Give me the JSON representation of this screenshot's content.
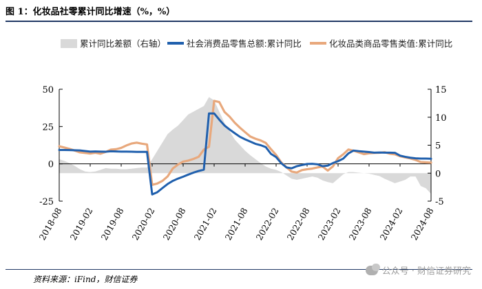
{
  "figure": {
    "title": "图 1：化妆品社零累计同比增速（%，%）",
    "source": "资料来源：iFind，财信证券",
    "watermark": "公众号 · 财信证券研究"
  },
  "chart_data": {
    "type": "line",
    "legend_position": "top",
    "grid": false,
    "left_axis": {
      "ylim": [
        -25,
        50
      ],
      "ticks": [
        -25,
        0,
        25,
        50
      ]
    },
    "right_axis": {
      "ylim": [
        -5,
        15
      ],
      "ticks": [
        -5,
        0,
        5,
        10,
        15
      ]
    },
    "x_tick_labels": [
      "2018-08",
      "2019-02",
      "2019-08",
      "2020-02",
      "2020-08",
      "2021-02",
      "2021-08",
      "2022-02",
      "2022-08",
      "2023-02",
      "2023-08",
      "2024-02",
      "2024-08"
    ],
    "x_start": "2018-08",
    "x": [
      "2018-08",
      "2018-09",
      "2018-10",
      "2018-11",
      "2018-12",
      "2019-01",
      "2019-02",
      "2019-03",
      "2019-04",
      "2019-05",
      "2019-06",
      "2019-07",
      "2019-08",
      "2019-09",
      "2019-10",
      "2019-11",
      "2019-12",
      "2020-01",
      "2020-02",
      "2020-03",
      "2020-04",
      "2020-05",
      "2020-06",
      "2020-07",
      "2020-08",
      "2020-09",
      "2020-10",
      "2020-11",
      "2020-12",
      "2021-01",
      "2021-02",
      "2021-03",
      "2021-04",
      "2021-05",
      "2021-06",
      "2021-07",
      "2021-08",
      "2021-09",
      "2021-10",
      "2021-11",
      "2021-12",
      "2022-01",
      "2022-02",
      "2022-03",
      "2022-04",
      "2022-05",
      "2022-06",
      "2022-07",
      "2022-08",
      "2022-09",
      "2022-10",
      "2022-11",
      "2022-12",
      "2023-01",
      "2023-02",
      "2023-03",
      "2023-04",
      "2023-05",
      "2023-06",
      "2023-07",
      "2023-08",
      "2023-09",
      "2023-10",
      "2023-11",
      "2023-12",
      "2024-01",
      "2024-02",
      "2024-03",
      "2024-04",
      "2024-05",
      "2024-06",
      "2024-07",
      "2024-08"
    ],
    "series": [
      {
        "name": "累计同比差额（右轴）",
        "type": "area",
        "axis": "right",
        "color": "#d9d9d9",
        "values": [
          2.5,
          2.2,
          1.8,
          1.3,
          0.7,
          0.3,
          0.2,
          0.3,
          0.6,
          0.9,
          0.8,
          0.8,
          0.7,
          0.7,
          0.8,
          0.9,
          1.0,
          1.0,
          2.5,
          4.0,
          5.5,
          7.0,
          7.8,
          8.5,
          9.5,
          10.5,
          11.0,
          11.5,
          12.0,
          13.6,
          13.0,
          11.0,
          9.0,
          7.5,
          6.0,
          5.0,
          4.0,
          3.2,
          2.5,
          1.8,
          1.2,
          0.8,
          0.6,
          0.2,
          -0.4,
          -1.0,
          -1.2,
          -1.0,
          -0.8,
          -0.6,
          -0.8,
          -1.3,
          -1.6,
          -1.8,
          -1.0,
          -0.2,
          0.2,
          0.2,
          0.1,
          0.0,
          -0.1,
          -0.3,
          -0.5,
          -1.0,
          -1.4,
          -1.8,
          -1.5,
          -1.2,
          -0.6,
          -0.6,
          -2.3,
          -2.7,
          -3.7
        ]
      },
      {
        "name": "社会消费品零售总额:累计同比",
        "type": "line",
        "axis": "left",
        "color": "#1f5fad",
        "values": [
          9.3,
          9.3,
          9.2,
          9.1,
          9.0,
          8.6,
          8.2,
          8.3,
          8.2,
          8.1,
          8.4,
          8.3,
          8.2,
          8.2,
          8.1,
          8.0,
          8.0,
          8.0,
          -20.5,
          -19.0,
          -16.2,
          -13.5,
          -11.4,
          -9.9,
          -8.6,
          -7.2,
          -5.9,
          -4.8,
          -3.9,
          33.8,
          33.8,
          29.6,
          25.7,
          23.0,
          20.5,
          18.1,
          16.4,
          14.9,
          13.4,
          12.5,
          11.2,
          6.7,
          4.5,
          0.4,
          -2.4,
          -3.0,
          -1.6,
          -0.8,
          -0.1,
          0.0,
          -0.3,
          -1.6,
          -1.2,
          0.5,
          1.8,
          3.5,
          7.0,
          8.9,
          8.5,
          8.2,
          7.9,
          7.5,
          7.6,
          7.5,
          7.5,
          7.4,
          5.5,
          4.7,
          4.1,
          3.7,
          3.5,
          3.5,
          3.4
        ]
      },
      {
        "name": "化妆品类商品零售类值:累计同比",
        "type": "line",
        "axis": "left",
        "color": "#e8a87c",
        "values": [
          11.8,
          10.9,
          10.0,
          8.9,
          7.7,
          7.3,
          6.9,
          7.4,
          6.8,
          8.0,
          9.5,
          9.8,
          10.7,
          12.3,
          13.6,
          14.2,
          13.5,
          13.0,
          -14.1,
          -13.2,
          -11.4,
          -8.4,
          -3.1,
          -0.5,
          1.5,
          2.2,
          3.3,
          4.7,
          9.5,
          11.4,
          42.2,
          41.4,
          34.8,
          31.6,
          27.5,
          24.2,
          21.2,
          18.3,
          16.8,
          15.7,
          14.0,
          9.8,
          5.9,
          0.9,
          -2.3,
          -5.2,
          -5.8,
          -4.2,
          -3.6,
          -3.2,
          -2.4,
          -1.8,
          -4.5,
          -1.7,
          3.8,
          6.4,
          9.6,
          8.8,
          7.7,
          6.5,
          7.1,
          7.3,
          7.4,
          7.8,
          6.8,
          6.4,
          5.1,
          4.3,
          3.6,
          2.6,
          1.2,
          1.0,
          0.8
        ]
      }
    ]
  }
}
